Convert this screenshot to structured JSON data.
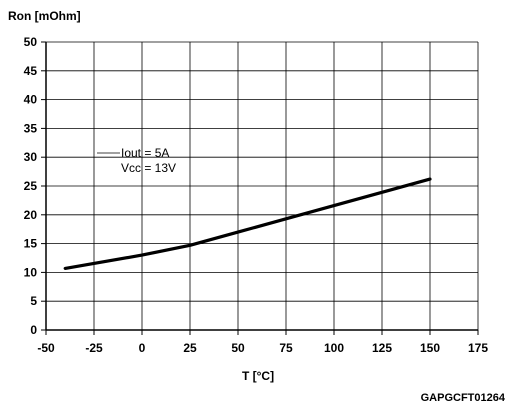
{
  "chart_data": {
    "type": "line",
    "ylabel": "Ron [mOhm]",
    "xlabel": "T [°C]",
    "xlim": [
      -50,
      175
    ],
    "ylim": [
      0,
      50
    ],
    "xticks": [
      "-50",
      "-25",
      "0",
      "25",
      "50",
      "75",
      "100",
      "125",
      "150",
      "175"
    ],
    "yticks": [
      "0",
      "5",
      "10",
      "15",
      "20",
      "25",
      "30",
      "35",
      "40",
      "45",
      "50"
    ],
    "grid": true,
    "annotations": [
      "Iout = 5A",
      "Vcc = 13V"
    ],
    "figure_id": "GAPGCFT01264",
    "series": [
      {
        "color": "#000000",
        "x": [
          -40,
          0,
          25,
          50,
          75,
          100,
          125,
          150
        ],
        "y": [
          10.7,
          13.0,
          14.7,
          17.0,
          19.3,
          21.6,
          23.9,
          26.2
        ]
      }
    ]
  }
}
